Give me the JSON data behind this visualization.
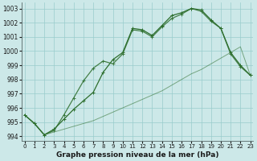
{
  "xlabel": "Graphe pression niveau de la mer (hPa)",
  "bg_color": "#cce8e8",
  "grid_color": "#99cccc",
  "line_color": "#2d6e2d",
  "ylim": [
    993.7,
    1003.4
  ],
  "xlim": [
    -0.3,
    23.3
  ],
  "yticks": [
    994,
    995,
    996,
    997,
    998,
    999,
    1000,
    1001,
    1002,
    1003
  ],
  "xticks": [
    0,
    1,
    2,
    3,
    4,
    5,
    6,
    7,
    8,
    9,
    10,
    11,
    12,
    13,
    14,
    15,
    16,
    17,
    18,
    19,
    20,
    21,
    22,
    23
  ],
  "line_thin_x": [
    0,
    1,
    2,
    3,
    4,
    5,
    6,
    7,
    8,
    9,
    10,
    11,
    12,
    13,
    14,
    15,
    16,
    17,
    18,
    19,
    20,
    21,
    22,
    23
  ],
  "line_thin_y": [
    995.5,
    994.9,
    994.1,
    994.3,
    994.5,
    994.7,
    994.9,
    995.1,
    995.4,
    995.7,
    996.0,
    996.3,
    996.6,
    996.9,
    997.2,
    997.6,
    998.0,
    998.4,
    998.7,
    999.1,
    999.5,
    999.9,
    1000.3,
    998.3
  ],
  "line_mid_x": [
    0,
    1,
    2,
    3,
    4,
    5,
    6,
    7,
    8,
    9,
    10,
    11,
    12,
    13,
    14,
    15,
    16,
    17,
    18,
    19,
    20,
    21,
    22,
    23
  ],
  "line_mid_y": [
    995.5,
    994.9,
    994.1,
    994.4,
    995.5,
    996.7,
    997.9,
    998.8,
    999.3,
    999.1,
    999.8,
    1001.5,
    1001.4,
    1001.0,
    1001.7,
    1002.3,
    1002.6,
    1003.0,
    1002.8,
    1002.1,
    1001.6,
    999.8,
    998.9,
    998.3
  ],
  "line_top_x": [
    0,
    1,
    2,
    3,
    4,
    5,
    6,
    7,
    8,
    9,
    10,
    11,
    12,
    13,
    14,
    15,
    16,
    17,
    18,
    19,
    20,
    21,
    22,
    23
  ],
  "line_top_y": [
    995.5,
    994.9,
    994.1,
    994.5,
    995.2,
    995.9,
    996.5,
    997.1,
    998.5,
    999.4,
    999.9,
    1001.6,
    1001.5,
    1001.1,
    1001.8,
    1002.5,
    1002.7,
    1003.0,
    1002.9,
    1002.2,
    1001.6,
    999.9,
    999.0,
    998.3
  ]
}
